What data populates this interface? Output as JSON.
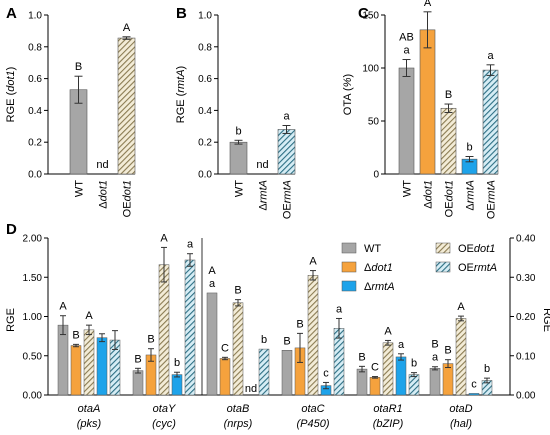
{
  "colors": {
    "WT": "#a6a6a6",
    "dot1": "#f5a23d",
    "OEdot1_fg": "#8a7b52",
    "OEdot1_bg": "#f3ecd7",
    "rmtA": "#1ea3ea",
    "OErmtA_fg": "#2d6f84",
    "OErmtA_bg": "#d6edf5"
  },
  "chart_data": [
    {
      "panel": "A",
      "type": "bar",
      "ylabel": "RGE (dot1)",
      "ylim": [
        0,
        1.0
      ],
      "yticks": [
        "0.0",
        "0.2",
        "0.4",
        "0.6",
        "0.8",
        "1.0"
      ],
      "categories": [
        {
          "parts": [
            {
              "t": "WT",
              "i": false
            }
          ]
        },
        {
          "parts": [
            {
              "t": "Δ",
              "i": false
            },
            {
              "t": "dot1",
              "i": true
            }
          ]
        },
        {
          "parts": [
            {
              "t": "OE",
              "i": false
            },
            {
              "t": "dot1",
              "i": true
            }
          ]
        }
      ],
      "bars": [
        {
          "value": 0.53,
          "err": 0.085,
          "style": "WT",
          "sig": "B"
        },
        {
          "value": 0,
          "err": 0,
          "style": "none",
          "sig": "nd"
        },
        {
          "value": 0.855,
          "err": 0.008,
          "style": "OEdot1",
          "sig": "A"
        }
      ]
    },
    {
      "panel": "B",
      "type": "bar",
      "ylabel": "RGE (rmtA)",
      "ylim": [
        0,
        1.0
      ],
      "yticks": [
        "0.0",
        "0.2",
        "0.4",
        "0.6",
        "0.8",
        "1.0"
      ],
      "categories": [
        {
          "parts": [
            {
              "t": "WT",
              "i": false
            }
          ]
        },
        {
          "parts": [
            {
              "t": "Δ",
              "i": false
            },
            {
              "t": "rmtA",
              "i": true
            }
          ]
        },
        {
          "parts": [
            {
              "t": "OE",
              "i": false
            },
            {
              "t": "rmtA",
              "i": true
            }
          ]
        }
      ],
      "bars": [
        {
          "value": 0.2,
          "err": 0.012,
          "style": "WT",
          "sig": "b"
        },
        {
          "value": 0,
          "err": 0,
          "style": "none",
          "sig": "nd"
        },
        {
          "value": 0.28,
          "err": 0.025,
          "style": "OErmtA",
          "sig": "a"
        }
      ]
    },
    {
      "panel": "C",
      "type": "bar",
      "ylabel": "OTA (%)",
      "ylim": [
        0,
        150
      ],
      "yticks": [
        "0",
        "50",
        "100",
        "150"
      ],
      "categories": [
        {
          "parts": [
            {
              "t": "WT",
              "i": false
            }
          ]
        },
        {
          "parts": [
            {
              "t": "Δ",
              "i": false
            },
            {
              "t": "dot1",
              "i": true
            }
          ]
        },
        {
          "parts": [
            {
              "t": "OE",
              "i": false
            },
            {
              "t": "dot1",
              "i": true
            }
          ]
        },
        {
          "parts": [
            {
              "t": "Δ",
              "i": false
            },
            {
              "t": "rmtA",
              "i": true
            }
          ]
        },
        {
          "parts": [
            {
              "t": "OE",
              "i": false
            },
            {
              "t": "rmtA",
              "i": true
            }
          ]
        }
      ],
      "bars": [
        {
          "value": 100,
          "err": 8,
          "style": "WT",
          "sig": "a",
          "sig2": "AB"
        },
        {
          "value": 136,
          "err": 17,
          "style": "dot1",
          "sig": "A"
        },
        {
          "value": 62,
          "err": 4,
          "style": "OEdot1",
          "sig": "B"
        },
        {
          "value": 14,
          "err": 2.5,
          "style": "rmtA",
          "sig": "b"
        },
        {
          "value": 98,
          "err": 5,
          "style": "OErmtA",
          "sig": "a"
        }
      ]
    },
    {
      "panel": "D",
      "type": "bar",
      "ylabel_left": "RGE",
      "ylabel_right": "RGE",
      "ylim_left": [
        0,
        2.0
      ],
      "ylim_right": [
        0,
        0.4
      ],
      "yticks_left": [
        "0.00",
        "0.50",
        "1.00",
        "1.50",
        "2.00"
      ],
      "yticks_right": [
        "0.00",
        "0.10",
        "0.20",
        "0.30",
        "0.40"
      ],
      "legend": [
        {
          "style": "WT",
          "parts": [
            {
              "t": "WT",
              "i": false
            }
          ]
        },
        {
          "style": "OEdot1",
          "parts": [
            {
              "t": "OE",
              "i": false
            },
            {
              "t": "dot1",
              "i": true
            }
          ]
        },
        {
          "style": "dot1",
          "parts": [
            {
              "t": "Δ",
              "i": false
            },
            {
              "t": "dot1",
              "i": true
            }
          ]
        },
        {
          "style": "OErmtA",
          "parts": [
            {
              "t": "OE",
              "i": false
            },
            {
              "t": "rmtA",
              "i": true
            }
          ]
        },
        {
          "style": "rmtA",
          "parts": [
            {
              "t": "Δ",
              "i": false
            },
            {
              "t": "rmtA",
              "i": true
            }
          ]
        }
      ],
      "groups": [
        {
          "gene": "otaA",
          "sub": "(pks)",
          "axis": "left",
          "bars": [
            {
              "style": "WT",
              "value": 0.89,
              "err": 0.12,
              "sig": "A"
            },
            {
              "style": "dot1",
              "value": 0.63,
              "err": 0.015,
              "sig": "B"
            },
            {
              "style": "OEdot1",
              "value": 0.83,
              "err": 0.06,
              "sig": "A"
            },
            {
              "style": "rmtA",
              "value": 0.73,
              "err": 0.05,
              "sig": ""
            },
            {
              "style": "OErmtA",
              "value": 0.7,
              "err": 0.12,
              "sig": ""
            }
          ]
        },
        {
          "gene": "otaY",
          "sub": "(cyc)",
          "axis": "left",
          "bars": [
            {
              "style": "WT",
              "value": 0.31,
              "err": 0.03,
              "sig": "B"
            },
            {
              "style": "dot1",
              "value": 0.51,
              "err": 0.08,
              "sig": "B"
            },
            {
              "style": "OEdot1",
              "value": 1.66,
              "err": 0.22,
              "sig": "A"
            },
            {
              "style": "rmtA",
              "value": 0.26,
              "err": 0.03,
              "sig": "b"
            },
            {
              "style": "OErmtA",
              "value": 1.72,
              "err": 0.08,
              "sig": "a"
            }
          ]
        },
        {
          "gene": "otaB",
          "sub": "(nrps)",
          "axis": "right",
          "bars": [
            {
              "style": "WT",
              "value": 0.26,
              "err": 0.0,
              "sig": "a",
              "sig2": "A"
            },
            {
              "style": "dot1",
              "value": 0.093,
              "err": 0.003,
              "sig": "C"
            },
            {
              "style": "OEdot1",
              "value": 0.235,
              "err": 0.008,
              "sig": "B"
            },
            {
              "style": "rmtA",
              "value": 0,
              "err": 0,
              "sig": "nd"
            },
            {
              "style": "OErmtA",
              "value": 0.117,
              "err": 0.0,
              "sig": "b"
            }
          ]
        },
        {
          "gene": "otaC",
          "sub": "(P450)",
          "axis": "right",
          "bars": [
            {
              "style": "WT",
              "value": 0.114,
              "err": 0.0,
              "sig": "B"
            },
            {
              "style": "dot1",
              "value": 0.12,
              "err": 0.037,
              "sig": "B"
            },
            {
              "style": "OEdot1",
              "value": 0.305,
              "err": 0.012,
              "sig": "A"
            },
            {
              "style": "rmtA",
              "value": 0.024,
              "err": 0.008,
              "sig": "c"
            },
            {
              "style": "OErmtA",
              "value": 0.17,
              "err": 0.025,
              "sig": "a"
            }
          ]
        },
        {
          "gene": "otaR1",
          "sub": "(bZIP)",
          "axis": "right",
          "bars": [
            {
              "style": "WT",
              "value": 0.066,
              "err": 0.007,
              "sig": "B"
            },
            {
              "style": "dot1",
              "value": 0.045,
              "err": 0.002,
              "sig": "C"
            },
            {
              "style": "OEdot1",
              "value": 0.133,
              "err": 0.006,
              "sig": "A"
            },
            {
              "style": "rmtA",
              "value": 0.097,
              "err": 0.008,
              "sig": "a"
            },
            {
              "style": "OErmtA",
              "value": 0.052,
              "err": 0.005,
              "sig": "b"
            }
          ]
        },
        {
          "gene": "otaD",
          "sub": "(hal)",
          "axis": "right",
          "bars": [
            {
              "style": "WT",
              "value": 0.068,
              "err": 0.004,
              "sig": "a",
              "sig2": "B"
            },
            {
              "style": "dot1",
              "value": 0.08,
              "err": 0.01,
              "sig": "B"
            },
            {
              "style": "OEdot1",
              "value": 0.195,
              "err": 0.006,
              "sig": "A"
            },
            {
              "style": "rmtA",
              "value": 0.004,
              "err": 0.0,
              "sig": "c"
            },
            {
              "style": "OErmtA",
              "value": 0.037,
              "err": 0.006,
              "sig": "b"
            }
          ]
        }
      ]
    }
  ]
}
